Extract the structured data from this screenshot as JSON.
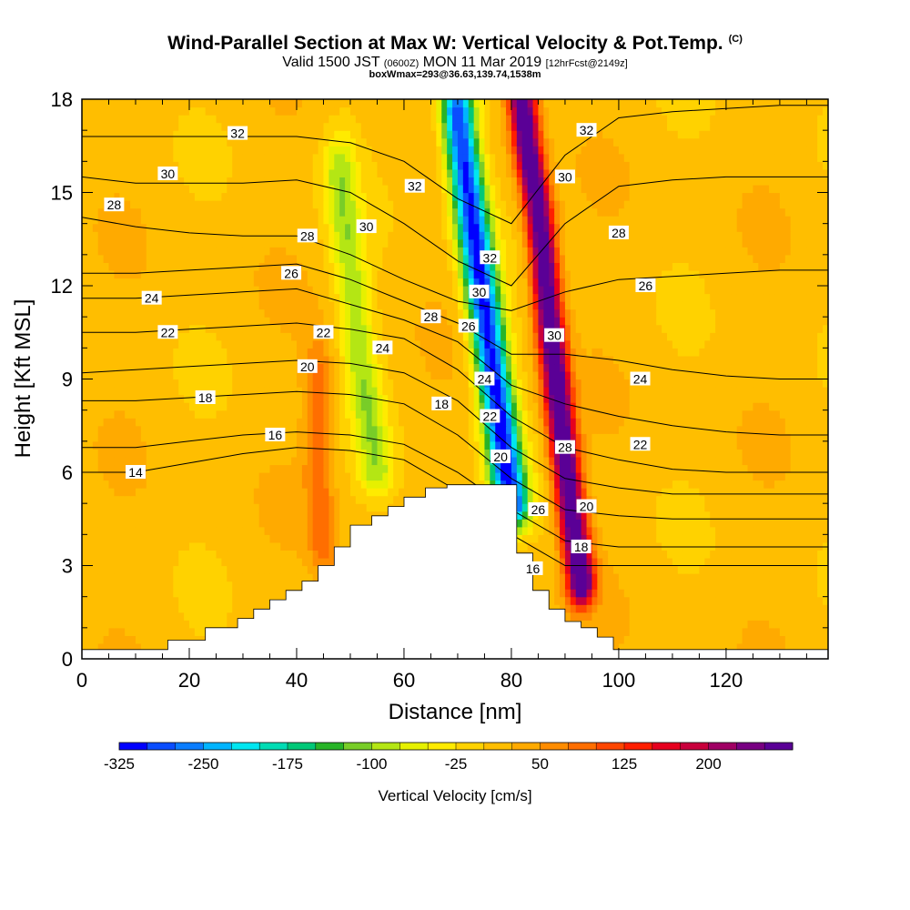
{
  "header": {
    "title": "Wind-Parallel Section at Max W: Vertical Velocity & Pot.Temp.",
    "copyright": "(C)",
    "subtitle_main": "Valid 1500 JST",
    "subtitle_z": "(0600Z)",
    "subtitle_date": "MON 11 Mar 2019",
    "subtitle_fcst": "[12hrFcst@2149z]",
    "detail": "boxWmax=293@36.63,139.74,1538m"
  },
  "chart_data": {
    "type": "heatmap",
    "title": "Wind-Parallel Section at Max W: Vertical Velocity & Pot.Temp.",
    "xlabel": "Distance [nm]",
    "ylabel": "Height [Kft MSL]",
    "xlim": [
      0,
      139
    ],
    "ylim": [
      0,
      18
    ],
    "x_ticks": [
      "0",
      "20",
      "40",
      "60",
      "80",
      "100",
      "120"
    ],
    "x_tick_values": [
      0,
      20,
      40,
      60,
      80,
      100,
      120
    ],
    "y_ticks": [
      "0",
      "3",
      "6",
      "9",
      "12",
      "15",
      "18"
    ],
    "y_tick_values": [
      0,
      3,
      6,
      9,
      12,
      15,
      18
    ],
    "grid": false,
    "colorbar": {
      "title": "Vertical Velocity [cm/s]",
      "labels": [
        "-325",
        "-250",
        "-175",
        "-100",
        "-25",
        "50",
        "125",
        "200"
      ],
      "label_values": [
        -325,
        -250,
        -175,
        -100,
        -25,
        50,
        125,
        200
      ],
      "min": -325,
      "step": 25,
      "colors": [
        "#0000ff",
        "#0a4dff",
        "#0a7dff",
        "#00b4ff",
        "#00e6f0",
        "#00dcb4",
        "#00c878",
        "#28b428",
        "#78cd28",
        "#b4e614",
        "#e6f000",
        "#ffeb00",
        "#ffd200",
        "#ffbe00",
        "#ffaa00",
        "#ff8c00",
        "#ff6e00",
        "#ff4600",
        "#ff1e00",
        "#e6001e",
        "#c8003c",
        "#a00064",
        "#780082",
        "#5a0096"
      ]
    },
    "terrain_profile": {
      "x": [
        0,
        16,
        16,
        23,
        23,
        29,
        29,
        32,
        32,
        35,
        35,
        38,
        38,
        41,
        41,
        44,
        44,
        47,
        47,
        50,
        50,
        54,
        54,
        57,
        57,
        60,
        60,
        64,
        64,
        68,
        68,
        81,
        81,
        84,
        84,
        87,
        87,
        90,
        90,
        93,
        93,
        96,
        96,
        99,
        99,
        123,
        123,
        139
      ],
      "height": [
        0.3,
        0.3,
        0.6,
        0.6,
        1.0,
        1.0,
        1.3,
        1.3,
        1.6,
        1.6,
        1.9,
        1.9,
        2.2,
        2.2,
        2.5,
        2.5,
        3.0,
        3.0,
        3.6,
        3.6,
        4.3,
        4.3,
        4.6,
        4.6,
        4.9,
        4.9,
        5.2,
        5.2,
        5.5,
        5.5,
        5.6,
        5.6,
        3.4,
        3.4,
        2.2,
        2.2,
        1.6,
        1.6,
        1.2,
        1.2,
        1.0,
        1.0,
        0.7,
        0.7,
        0.3,
        0.3,
        0.3,
        0.3
      ]
    },
    "velocity_features": [
      {
        "name": "Updraft",
        "x": [
          93,
          91,
          89,
          87,
          86,
          85,
          83,
          82
        ],
        "height": [
          2.5,
          5.0,
          8.0,
          11.0,
          13.0,
          14.5,
          16.5,
          18.0
        ],
        "peak": 293
      },
      {
        "name": "Downdraft",
        "x": [
          80,
          78,
          76,
          74,
          72,
          70
        ],
        "height": [
          5.0,
          7.5,
          10.0,
          12.5,
          15.0,
          17.5
        ],
        "peak": -325
      },
      {
        "name": "Weak descent",
        "x": [
          55,
          52,
          50,
          48
        ],
        "height": [
          6.0,
          9.5,
          12.5,
          15.5
        ],
        "peak": -100
      },
      {
        "name": "Weak ascent",
        "x": [
          45,
          44,
          44
        ],
        "height": [
          3.5,
          6.0,
          9.0
        ],
        "peak": 75
      }
    ],
    "isentropes": [
      {
        "theta": 14,
        "heights": [
          6.0,
          6.0,
          6.3,
          6.6,
          6.8,
          6.7,
          6.4,
          5.4,
          4.0,
          3.0,
          3.0,
          3.0,
          3.0,
          3.0,
          3.0
        ]
      },
      {
        "theta": 16,
        "heights": [
          6.8,
          6.8,
          7.0,
          7.2,
          7.3,
          7.2,
          6.9,
          6.0,
          4.8,
          3.8,
          3.6,
          3.6,
          3.6,
          3.6,
          3.6
        ]
      },
      {
        "theta": 18,
        "heights": [
          8.3,
          8.3,
          8.4,
          8.5,
          8.6,
          8.5,
          8.2,
          7.2,
          5.8,
          4.8,
          4.6,
          4.5,
          4.5,
          4.5,
          4.5
        ]
      },
      {
        "theta": 20,
        "heights": [
          9.2,
          9.3,
          9.4,
          9.5,
          9.6,
          9.5,
          9.2,
          8.3,
          6.8,
          5.8,
          5.5,
          5.3,
          5.3,
          5.3,
          5.3
        ]
      },
      {
        "theta": 22,
        "heights": [
          10.5,
          10.5,
          10.6,
          10.7,
          10.8,
          10.6,
          10.3,
          9.3,
          7.8,
          6.8,
          6.4,
          6.1,
          6.0,
          6.0,
          6.0
        ]
      },
      {
        "theta": 24,
        "heights": [
          11.6,
          11.6,
          11.7,
          11.8,
          11.9,
          11.4,
          10.9,
          10.2,
          8.8,
          8.2,
          7.8,
          7.5,
          7.3,
          7.2,
          7.2
        ]
      },
      {
        "theta": 26,
        "heights": [
          12.4,
          12.4,
          12.5,
          12.6,
          12.7,
          12.2,
          11.5,
          10.8,
          9.8,
          9.8,
          9.6,
          9.3,
          9.1,
          9.0,
          9.0
        ]
      },
      {
        "theta": 28,
        "heights": [
          14.2,
          13.9,
          13.7,
          13.6,
          13.6,
          13.0,
          12.2,
          11.5,
          11.2,
          11.8,
          12.2,
          12.3,
          12.4,
          12.5,
          12.5
        ]
      },
      {
        "theta": 30,
        "heights": [
          15.5,
          15.3,
          15.3,
          15.3,
          15.4,
          15.0,
          14.0,
          12.8,
          12.0,
          14.0,
          15.2,
          15.4,
          15.5,
          15.5,
          15.5
        ]
      },
      {
        "theta": 32,
        "heights": [
          16.8,
          16.8,
          16.8,
          16.8,
          16.8,
          16.6,
          16.0,
          14.8,
          14.0,
          16.2,
          17.4,
          17.6,
          17.7,
          17.8,
          17.8
        ]
      }
    ],
    "isentrope_x": [
      0,
      10,
      20,
      30,
      40,
      50,
      60,
      70,
      80,
      90,
      100,
      110,
      120,
      130,
      139
    ],
    "contour_labels": [
      {
        "text": "32",
        "x": 29,
        "h": 16.9
      },
      {
        "text": "30",
        "x": 16,
        "h": 15.6
      },
      {
        "text": "28",
        "x": 6,
        "h": 14.6
      },
      {
        "text": "28",
        "x": 42,
        "h": 13.6
      },
      {
        "text": "26",
        "x": 39,
        "h": 12.4
      },
      {
        "text": "24",
        "x": 13,
        "h": 11.6
      },
      {
        "text": "22",
        "x": 16,
        "h": 10.5
      },
      {
        "text": "22",
        "x": 45,
        "h": 10.5
      },
      {
        "text": "20",
        "x": 42,
        "h": 9.4
      },
      {
        "text": "18",
        "x": 23,
        "h": 8.4
      },
      {
        "text": "16",
        "x": 36,
        "h": 7.2
      },
      {
        "text": "14",
        "x": 10,
        "h": 6.0
      },
      {
        "text": "32",
        "x": 62,
        "h": 15.2
      },
      {
        "text": "30",
        "x": 53,
        "h": 13.9
      },
      {
        "text": "24",
        "x": 56,
        "h": 10.0
      },
      {
        "text": "28",
        "x": 65,
        "h": 11.0
      },
      {
        "text": "26",
        "x": 72,
        "h": 10.7
      },
      {
        "text": "18",
        "x": 67,
        "h": 8.2
      },
      {
        "text": "32",
        "x": 76,
        "h": 12.9
      },
      {
        "text": "30",
        "x": 74,
        "h": 11.8
      },
      {
        "text": "24",
        "x": 75,
        "h": 9.0
      },
      {
        "text": "22",
        "x": 76,
        "h": 7.8
      },
      {
        "text": "20",
        "x": 78,
        "h": 6.5
      },
      {
        "text": "26",
        "x": 85,
        "h": 4.8
      },
      {
        "text": "16",
        "x": 84,
        "h": 2.9
      },
      {
        "text": "30",
        "x": 88,
        "h": 10.4
      },
      {
        "text": "28",
        "x": 90,
        "h": 6.8
      },
      {
        "text": "20",
        "x": 94,
        "h": 4.9
      },
      {
        "text": "18",
        "x": 93,
        "h": 3.6
      },
      {
        "text": "32",
        "x": 94,
        "h": 17.0
      },
      {
        "text": "30",
        "x": 90,
        "h": 15.5
      },
      {
        "text": "28",
        "x": 100,
        "h": 13.7
      },
      {
        "text": "26",
        "x": 105,
        "h": 12.0
      },
      {
        "text": "24",
        "x": 104,
        "h": 9.0
      },
      {
        "text": "22",
        "x": 104,
        "h": 6.9
      }
    ]
  }
}
